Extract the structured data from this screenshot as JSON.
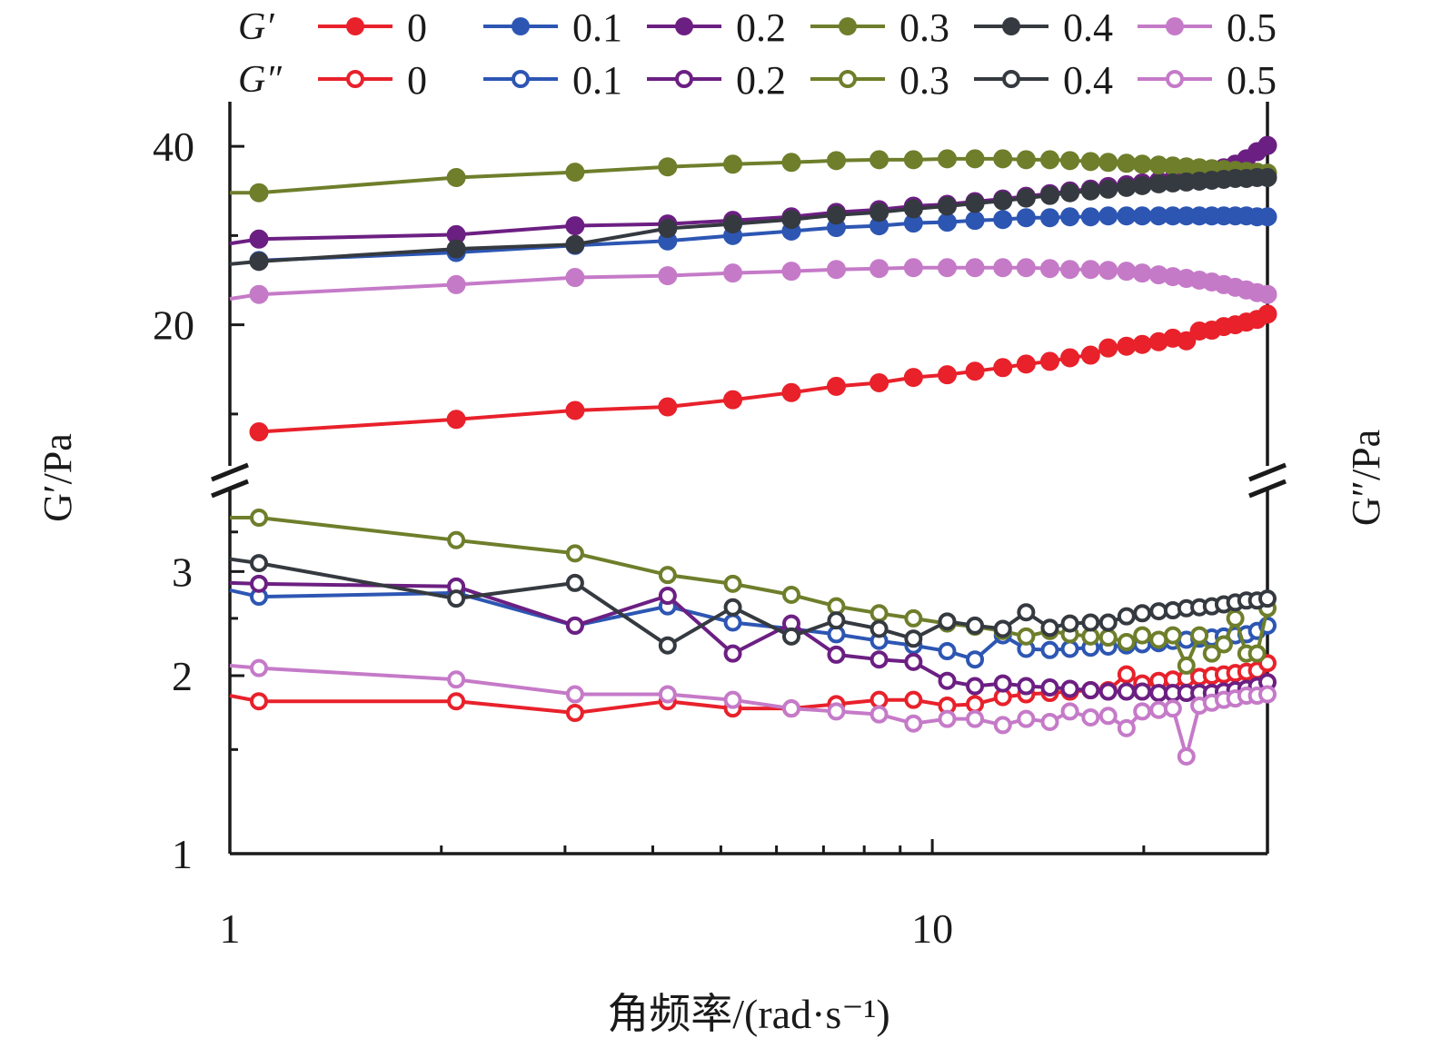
{
  "chart_data": {
    "type": "line",
    "title": "",
    "xlabel": "角频率/(rad·s⁻¹)",
    "x_scale": "log",
    "xlim": [
      1,
      30
    ],
    "x_ticks": [
      {
        "value": 1,
        "label": "1"
      },
      {
        "value": 10,
        "label": "10"
      }
    ],
    "grid": false,
    "legend_placement": "top",
    "upper_panel": {
      "ylabel": "G′/Pa",
      "y_scale": "linear",
      "ylim": [
        5,
        45
      ],
      "y_ticks": [
        {
          "value": 20,
          "label": "20"
        },
        {
          "value": 40,
          "label": "40"
        }
      ]
    },
    "lower_panel": {
      "ylabel": "G″/Pa",
      "y_scale": "log",
      "ylim": [
        1,
        4
      ],
      "y_ticks": [
        {
          "value": 1,
          "label": "1"
        },
        {
          "value": 2,
          "label": "2"
        },
        {
          "value": 3,
          "label": "3"
        }
      ]
    },
    "legend": {
      "row_labels": [
        "G′",
        "G″"
      ],
      "entries": [
        "0",
        "0.1",
        "0.2",
        "0.3",
        "0.4",
        "0.5"
      ]
    },
    "colors": {
      "0": "#e8212b",
      "0.1": "#2d56b3",
      "0.2": "#6c1f82",
      "0.3": "#6e7e2b",
      "0.4": "#353a40",
      "0.5": "#c57ac8"
    },
    "x": [
      1,
      1.1,
      2.1,
      3.1,
      4.2,
      5.2,
      6.3,
      7.3,
      8.4,
      9.4,
      10.5,
      11.5,
      12.6,
      13.6,
      14.7,
      15.7,
      16.8,
      17.8,
      18.9,
      19.9,
      21,
      22,
      23,
      24,
      25,
      26,
      27,
      28,
      29,
      30
    ],
    "series": [
      {
        "name": "0",
        "panel": "upper",
        "modulus": "G′",
        "marker": "filled",
        "values": [
          null,
          8,
          9.4,
          10.4,
          10.8,
          11.6,
          12.4,
          13.1,
          13.5,
          14.1,
          14.4,
          14.8,
          15.2,
          15.6,
          15.9,
          16.3,
          16.6,
          17.4,
          17.6,
          17.8,
          18.1,
          18.5,
          18.2,
          19.3,
          19.4,
          19.8,
          20,
          20.3,
          20.6,
          21.2
        ]
      },
      {
        "name": "0.1",
        "panel": "upper",
        "modulus": "G′",
        "marker": "filled",
        "values": [
          null,
          27.2,
          28.1,
          28.9,
          29.4,
          30,
          30.5,
          30.9,
          31.1,
          31.4,
          31.5,
          31.7,
          31.8,
          32,
          32,
          32.1,
          32.1,
          32.2,
          32.2,
          32.2,
          32.2,
          32.2,
          32.2,
          32.2,
          32.2,
          32.2,
          32.2,
          32.2,
          32.1,
          32.1
        ]
      },
      {
        "name": "0.2",
        "panel": "upper",
        "modulus": "G′",
        "marker": "filled",
        "values": [
          29.1,
          29.6,
          30.1,
          31.1,
          31.3,
          31.7,
          32.1,
          32.6,
          32.9,
          33.3,
          33.5,
          33.8,
          34.1,
          34.4,
          34.7,
          35,
          35.2,
          35.5,
          35.7,
          35.9,
          36.1,
          36.3,
          36.6,
          36.9,
          37.2,
          37.6,
          38,
          38.6,
          39.4,
          40.1
        ]
      },
      {
        "name": "0.3",
        "panel": "upper",
        "modulus": "G′",
        "marker": "filled",
        "values": [
          34.8,
          34.8,
          36.5,
          37.1,
          37.7,
          38,
          38.2,
          38.4,
          38.5,
          38.5,
          38.6,
          38.6,
          38.6,
          38.5,
          38.5,
          38.4,
          38.3,
          38.2,
          38.1,
          38,
          37.9,
          37.8,
          37.7,
          37.6,
          37.5,
          37.4,
          37.3,
          37.2,
          37.1,
          37
        ]
      },
      {
        "name": "0.4",
        "panel": "upper",
        "modulus": "G′",
        "marker": "filled",
        "values": [
          26.8,
          27.1,
          28.5,
          29,
          30.8,
          31.3,
          31.8,
          32.3,
          32.6,
          33,
          33.3,
          33.6,
          33.9,
          34.2,
          34.5,
          34.8,
          35,
          35.2,
          35.4,
          35.6,
          35.8,
          35.9,
          36,
          36.1,
          36.2,
          36.3,
          36.4,
          36.4,
          36.5,
          36.5
        ]
      },
      {
        "name": "0.5",
        "panel": "upper",
        "modulus": "G′",
        "marker": "filled",
        "values": [
          22.9,
          23.4,
          24.5,
          25.3,
          25.5,
          25.8,
          26,
          26.2,
          26.3,
          26.4,
          26.4,
          26.4,
          26.4,
          26.4,
          26.3,
          26.2,
          26.2,
          26.1,
          26,
          25.8,
          25.6,
          25.4,
          25.2,
          25,
          24.8,
          24.5,
          24.2,
          23.9,
          23.6,
          23.4
        ]
      },
      {
        "name": "0",
        "panel": "lower",
        "modulus": "G″",
        "marker": "open",
        "values": [
          1.85,
          1.81,
          1.81,
          1.73,
          1.81,
          1.76,
          1.76,
          1.79,
          1.82,
          1.82,
          1.78,
          1.79,
          1.84,
          1.86,
          1.87,
          1.88,
          1.89,
          1.89,
          2.01,
          1.94,
          1.96,
          1.97,
          1.98,
          1.99,
          2,
          2.01,
          2.02,
          2.03,
          2.04,
          2.1
        ]
      },
      {
        "name": "0.1",
        "panel": "lower",
        "modulus": "G″",
        "marker": "open",
        "values": [
          2.79,
          2.72,
          2.76,
          2.43,
          2.62,
          2.46,
          2.4,
          2.35,
          2.29,
          2.25,
          2.2,
          2.13,
          2.34,
          2.22,
          2.21,
          2.22,
          2.23,
          2.24,
          2.25,
          2.26,
          2.27,
          2.29,
          2.3,
          2.31,
          2.32,
          2.33,
          2.34,
          2.35,
          2.38,
          2.43
        ]
      },
      {
        "name": "0.2",
        "panel": "lower",
        "modulus": "G″",
        "marker": "open",
        "values": [
          2.87,
          2.86,
          2.83,
          2.43,
          2.73,
          2.18,
          2.45,
          2.17,
          2.13,
          2.11,
          1.96,
          1.92,
          1.94,
          1.92,
          1.91,
          1.9,
          1.89,
          1.88,
          1.88,
          1.88,
          1.87,
          1.87,
          1.87,
          1.87,
          1.87,
          1.88,
          1.89,
          1.9,
          1.92,
          1.95
        ]
      },
      {
        "name": "0.3",
        "panel": "lower",
        "modulus": "G″",
        "marker": "open",
        "values": [
          3.7,
          3.7,
          3.39,
          3.22,
          2.96,
          2.86,
          2.74,
          2.62,
          2.55,
          2.5,
          2.45,
          2.42,
          2.38,
          2.33,
          2.38,
          2.35,
          2.33,
          2.32,
          2.28,
          2.34,
          2.3,
          2.34,
          2.08,
          2.34,
          2.18,
          2.26,
          2.5,
          2.18,
          2.18,
          2.6
        ]
      },
      {
        "name": "0.4",
        "panel": "lower",
        "modulus": "G″",
        "marker": "open",
        "values": [
          3.15,
          3.1,
          2.7,
          2.87,
          2.25,
          2.61,
          2.33,
          2.48,
          2.4,
          2.31,
          2.47,
          2.43,
          2.4,
          2.56,
          2.41,
          2.45,
          2.46,
          2.46,
          2.52,
          2.55,
          2.57,
          2.58,
          2.6,
          2.61,
          2.62,
          2.64,
          2.66,
          2.68,
          2.68,
          2.7
        ]
      },
      {
        "name": "0.5",
        "panel": "lower",
        "modulus": "G″",
        "marker": "open",
        "values": [
          2.08,
          2.06,
          1.97,
          1.86,
          1.86,
          1.82,
          1.76,
          1.74,
          1.72,
          1.66,
          1.69,
          1.69,
          1.65,
          1.69,
          1.67,
          1.74,
          1.7,
          1.71,
          1.63,
          1.74,
          1.75,
          1.76,
          1.46,
          1.78,
          1.8,
          1.82,
          1.83,
          1.85,
          1.85,
          1.86
        ]
      }
    ]
  }
}
